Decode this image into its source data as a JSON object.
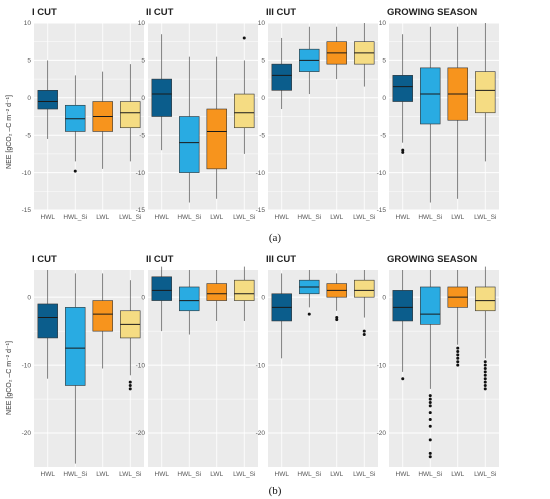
{
  "colors": {
    "HWL": "#0b5d8c",
    "HWL_Si": "#29abe2",
    "LWL": "#f7941d",
    "LWL_Si": "#f5dc83",
    "panel_bg": "#ebebeb",
    "grid": "#ffffff"
  },
  "ylabel": "NEE [gCO₂ –C m⁻² d⁻¹]",
  "chart_data": [
    {
      "type": "boxplot",
      "figure": "a",
      "title": "I CUT",
      "ylim": [
        -15,
        10
      ],
      "yticks": [
        -15,
        -10,
        -5,
        0,
        5,
        10
      ],
      "categories": [
        "HWL",
        "HWL_Si",
        "LWL",
        "LWL_Si"
      ],
      "boxes": [
        {
          "whisker_low": -5.5,
          "q1": -1.5,
          "median": -0.5,
          "q3": 1.0,
          "whisker_high": 5.0,
          "outliers": []
        },
        {
          "whisker_low": -8.5,
          "q1": -4.5,
          "median": -2.8,
          "q3": -1.0,
          "whisker_high": 3.0,
          "outliers": [
            -9.8
          ]
        },
        {
          "whisker_low": -9.5,
          "q1": -4.5,
          "median": -2.5,
          "q3": -0.5,
          "whisker_high": 3.5,
          "outliers": []
        },
        {
          "whisker_low": -8.5,
          "q1": -4.0,
          "median": -2.0,
          "q3": -0.5,
          "whisker_high": 4.5,
          "outliers": []
        }
      ]
    },
    {
      "type": "boxplot",
      "figure": "a",
      "title": "II CUT",
      "ylim": [
        -15,
        10
      ],
      "yticks": [
        -15,
        -10,
        -5,
        0,
        5,
        10
      ],
      "categories": [
        "HWL",
        "HWL_Si",
        "LWL",
        "LWL_Si"
      ],
      "boxes": [
        {
          "whisker_low": -7.0,
          "q1": -2.5,
          "median": 0.5,
          "q3": 2.5,
          "whisker_high": 8.5,
          "outliers": []
        },
        {
          "whisker_low": -14.0,
          "q1": -10.0,
          "median": -6.0,
          "q3": -2.5,
          "whisker_high": 5.5,
          "outliers": []
        },
        {
          "whisker_low": -13.5,
          "q1": -9.5,
          "median": -4.5,
          "q3": -1.5,
          "whisker_high": 5.5,
          "outliers": []
        },
        {
          "whisker_low": -7.5,
          "q1": -4.0,
          "median": -2.0,
          "q3": 0.5,
          "whisker_high": 5.0,
          "outliers": [
            8.0
          ]
        }
      ]
    },
    {
      "type": "boxplot",
      "figure": "a",
      "title": "III CUT",
      "ylim": [
        -15,
        10
      ],
      "yticks": [
        -15,
        -10,
        -5,
        0,
        5,
        10
      ],
      "categories": [
        "HWL",
        "HWL_Si",
        "LWL",
        "LWL_Si"
      ],
      "boxes": [
        {
          "whisker_low": -1.5,
          "q1": 1.0,
          "median": 3.0,
          "q3": 4.5,
          "whisker_high": 8.0,
          "outliers": []
        },
        {
          "whisker_low": 0.5,
          "q1": 3.5,
          "median": 5.0,
          "q3": 6.5,
          "whisker_high": 9.5,
          "outliers": []
        },
        {
          "whisker_low": 2.5,
          "q1": 4.5,
          "median": 6.0,
          "q3": 7.5,
          "whisker_high": 9.5,
          "outliers": []
        },
        {
          "whisker_low": 1.5,
          "q1": 4.5,
          "median": 6.0,
          "q3": 7.5,
          "whisker_high": 10.0,
          "outliers": []
        }
      ]
    },
    {
      "type": "boxplot",
      "figure": "a",
      "title": "GROWING SEASON",
      "ylim": [
        -15,
        10
      ],
      "yticks": [
        -15,
        -10,
        -5,
        0,
        5,
        10
      ],
      "categories": [
        "HWL",
        "HWL_Si",
        "LWL",
        "LWL_Si"
      ],
      "boxes": [
        {
          "whisker_low": -6.0,
          "q1": -0.5,
          "median": 1.5,
          "q3": 3.0,
          "whisker_high": 8.5,
          "outliers": [
            -7.0,
            -7.3
          ]
        },
        {
          "whisker_low": -14.0,
          "q1": -3.5,
          "median": 0.5,
          "q3": 4.0,
          "whisker_high": 9.5,
          "outliers": []
        },
        {
          "whisker_low": -13.5,
          "q1": -3.0,
          "median": 0.5,
          "q3": 4.0,
          "whisker_high": 9.5,
          "outliers": []
        },
        {
          "whisker_low": -8.5,
          "q1": -2.0,
          "median": 1.0,
          "q3": 3.5,
          "whisker_high": 10.0,
          "outliers": []
        }
      ]
    },
    {
      "type": "boxplot",
      "figure": "b",
      "title": "I CUT",
      "ylim": [
        -25,
        4
      ],
      "yticks": [
        -20,
        -10,
        0
      ],
      "categories": [
        "HWL",
        "HWL_Si",
        "LWL",
        "LWL_Si"
      ],
      "boxes": [
        {
          "whisker_low": -12.0,
          "q1": -6.0,
          "median": -3.0,
          "q3": -1.0,
          "whisker_high": 4.0,
          "outliers": []
        },
        {
          "whisker_low": -24.5,
          "q1": -13.0,
          "median": -7.5,
          "q3": -1.5,
          "whisker_high": 3.5,
          "outliers": []
        },
        {
          "whisker_low": -10.5,
          "q1": -5.0,
          "median": -2.5,
          "q3": -0.5,
          "whisker_high": 3.5,
          "outliers": []
        },
        {
          "whisker_low": -11.5,
          "q1": -6.0,
          "median": -4.0,
          "q3": -2.0,
          "whisker_high": 2.5,
          "outliers": [
            -12.5,
            -13.0,
            -13.5
          ]
        }
      ]
    },
    {
      "type": "boxplot",
      "figure": "b",
      "title": "II CUT",
      "ylim": [
        -25,
        4
      ],
      "yticks": [
        -20,
        -10,
        0
      ],
      "categories": [
        "HWL",
        "HWL_Si",
        "LWL",
        "LWL_Si"
      ],
      "boxes": [
        {
          "whisker_low": -5.0,
          "q1": -0.5,
          "median": 1.0,
          "q3": 3.0,
          "whisker_high": 4.5,
          "outliers": []
        },
        {
          "whisker_low": -5.5,
          "q1": -2.0,
          "median": -0.5,
          "q3": 1.5,
          "whisker_high": 4.0,
          "outliers": []
        },
        {
          "whisker_low": -3.5,
          "q1": -0.5,
          "median": 0.5,
          "q3": 2.0,
          "whisker_high": 4.0,
          "outliers": []
        },
        {
          "whisker_low": -3.5,
          "q1": -0.5,
          "median": 0.5,
          "q3": 2.5,
          "whisker_high": 4.5,
          "outliers": []
        }
      ]
    },
    {
      "type": "boxplot",
      "figure": "b",
      "title": "III CUT",
      "ylim": [
        -25,
        4
      ],
      "yticks": [
        -20,
        -10,
        0
      ],
      "categories": [
        "HWL",
        "HWL_Si",
        "LWL",
        "LWL_Si"
      ],
      "boxes": [
        {
          "whisker_low": -9.0,
          "q1": -3.5,
          "median": -1.5,
          "q3": 0.5,
          "whisker_high": 3.5,
          "outliers": []
        },
        {
          "whisker_low": -1.5,
          "q1": 0.5,
          "median": 1.5,
          "q3": 2.5,
          "whisker_high": 4.0,
          "outliers": [
            -2.5
          ]
        },
        {
          "whisker_low": -2.0,
          "q1": 0.0,
          "median": 1.0,
          "q3": 2.0,
          "whisker_high": 3.5,
          "outliers": [
            -3.0,
            -3.3
          ]
        },
        {
          "whisker_low": -3.0,
          "q1": 0.0,
          "median": 1.0,
          "q3": 2.5,
          "whisker_high": 4.0,
          "outliers": [
            -5.0,
            -5.5
          ]
        }
      ]
    },
    {
      "type": "boxplot",
      "figure": "b",
      "title": "GROWING SEASON",
      "ylim": [
        -25,
        4
      ],
      "yticks": [
        -20,
        -10,
        0
      ],
      "categories": [
        "HWL",
        "HWL_Si",
        "LWL",
        "LWL_Si"
      ],
      "boxes": [
        {
          "whisker_low": -11.0,
          "q1": -3.5,
          "median": -1.5,
          "q3": 1.0,
          "whisker_high": 4.0,
          "outliers": [
            -12.0
          ]
        },
        {
          "whisker_low": -13.5,
          "q1": -4.0,
          "median": -2.5,
          "q3": 1.5,
          "whisker_high": 4.0,
          "outliers": [
            -14.5,
            -15.0,
            -15.5,
            -16.0,
            -17.0,
            -18.0,
            -19.0,
            -21.0,
            -23.0,
            -23.5
          ]
        },
        {
          "whisker_low": -7.0,
          "q1": -1.5,
          "median": 0.0,
          "q3": 1.5,
          "whisker_high": 4.0,
          "outliers": [
            -7.5,
            -8.0,
            -8.5,
            -9.0,
            -9.5,
            -10.0
          ]
        },
        {
          "whisker_low": -9.0,
          "q1": -2.0,
          "median": -0.5,
          "q3": 1.5,
          "whisker_high": 4.5,
          "outliers": [
            -9.5,
            -10.0,
            -10.5,
            -11.0,
            -11.5,
            -12.0,
            -12.5,
            -13.0,
            -13.5
          ]
        }
      ]
    }
  ],
  "subfigure_labels": [
    "(a)",
    "(b)"
  ]
}
